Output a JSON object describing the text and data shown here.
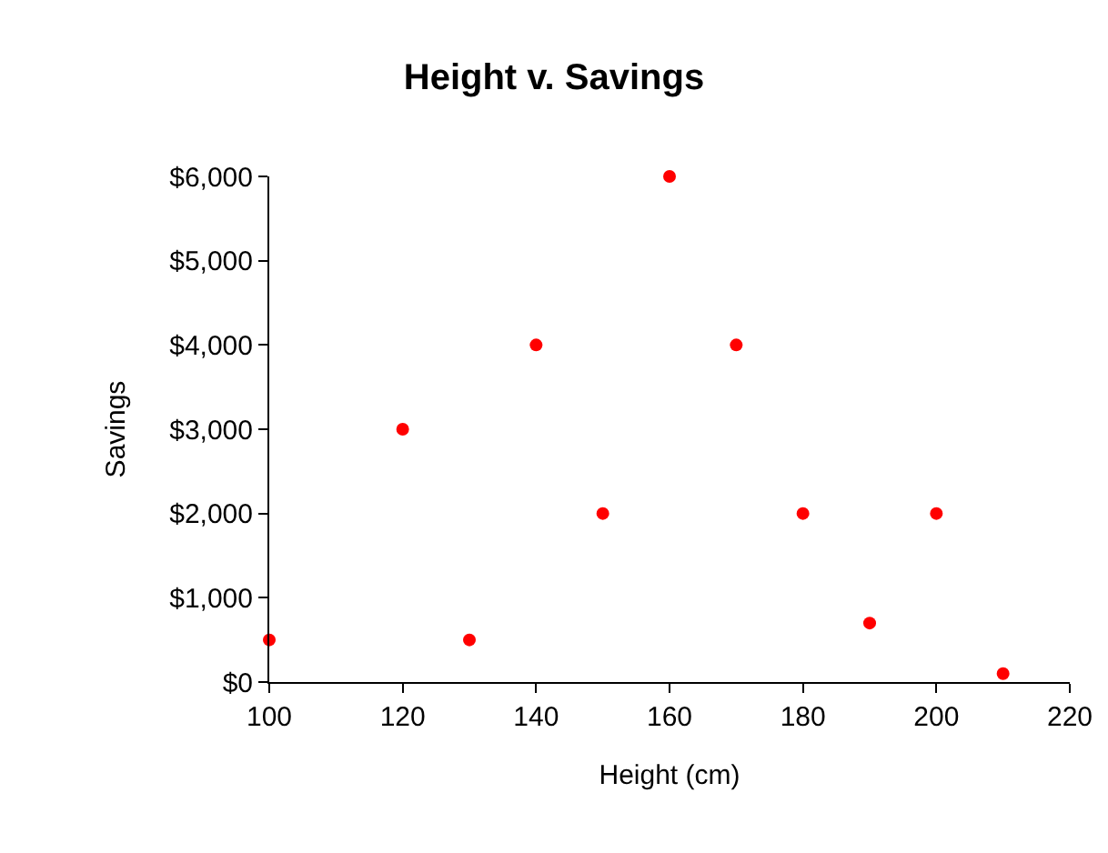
{
  "chart_data": {
    "type": "scatter",
    "title": "Height v. Savings",
    "xlabel": "Height (cm)",
    "ylabel": "Savings",
    "x": [
      100,
      120,
      130,
      140,
      150,
      160,
      170,
      180,
      190,
      200,
      210
    ],
    "series": [
      {
        "color": "#ff0000",
        "values": [
          500,
          3000,
          500,
          4000,
          2000,
          6000,
          4000,
          2000,
          700,
          2000,
          100
        ]
      }
    ],
    "xlim": [
      100,
      220
    ],
    "xticks": [
      100,
      120,
      140,
      160,
      180,
      200,
      220
    ],
    "ylim": [
      0,
      6000
    ],
    "yticks": [
      {
        "value": 0,
        "label": "$0"
      },
      {
        "value": 1000,
        "label": "$1,000"
      },
      {
        "value": 2000,
        "label": "$2,000"
      },
      {
        "value": 3000,
        "label": "$3,000"
      },
      {
        "value": 4000,
        "label": "$4,000"
      },
      {
        "value": 5000,
        "label": "$5,000"
      },
      {
        "value": 6000,
        "label": "$6,000"
      }
    ],
    "marker": "circle"
  }
}
